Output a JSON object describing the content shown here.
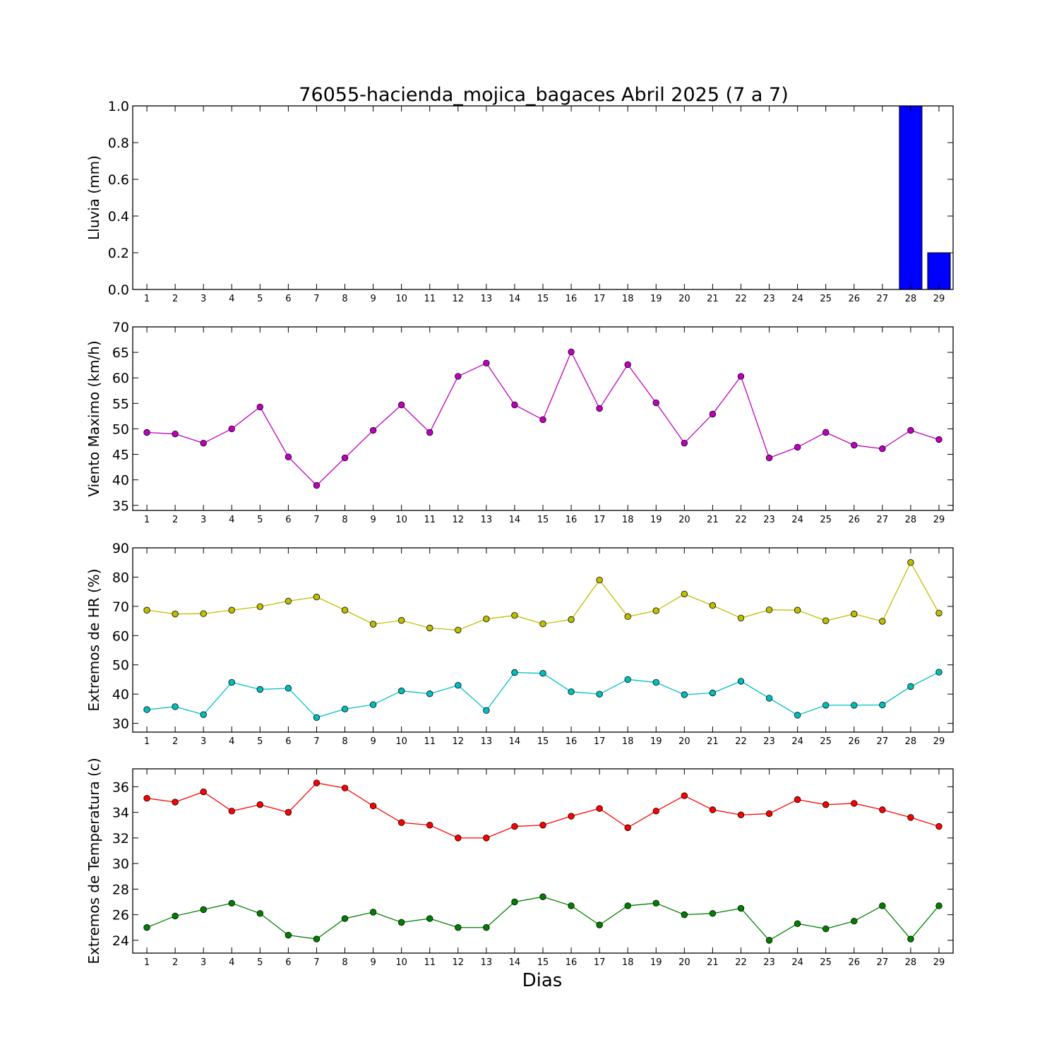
{
  "chart_data": {
    "title": "76055-hacienda_mojica_bagaces Abril 2025  (7 a 7)",
    "xlabel": "Dias",
    "x": [
      1,
      2,
      3,
      4,
      5,
      6,
      7,
      8,
      9,
      10,
      11,
      12,
      13,
      14,
      15,
      16,
      17,
      18,
      19,
      20,
      21,
      22,
      23,
      24,
      25,
      26,
      27,
      28,
      29
    ],
    "panels": [
      {
        "type": "bar",
        "ylabel": "Lluvia (mm)",
        "ylim": [
          0,
          1
        ],
        "yticks": [
          0.0,
          0.2,
          0.4,
          0.6,
          0.8,
          1.0
        ],
        "ytick_decimals": 1,
        "series": [
          {
            "color": "#0000ff",
            "values": [
              0,
              0,
              0,
              0,
              0,
              0,
              0,
              0,
              0,
              0,
              0,
              0,
              0,
              0,
              0,
              0,
              0,
              0,
              0,
              0,
              0,
              0,
              0,
              0,
              0,
              0,
              0,
              1.0,
              0.2
            ]
          }
        ]
      },
      {
        "type": "line",
        "ylabel": "Viento Maximo (km/h)",
        "ylim": [
          34,
          70
        ],
        "yticks": [
          35,
          40,
          45,
          50,
          55,
          60,
          65,
          70
        ],
        "ytick_decimals": 0,
        "series": [
          {
            "color": "#bf00bf",
            "values": [
              49.3,
              49.0,
              47.2,
              50.0,
              54.3,
              44.5,
              38.9,
              44.3,
              49.7,
              54.7,
              49.3,
              60.3,
              62.9,
              54.7,
              51.8,
              65.1,
              54.0,
              62.6,
              55.1,
              47.2,
              52.9,
              60.3,
              44.3,
              46.4,
              49.3,
              46.8,
              46.1,
              49.7,
              47.9
            ]
          }
        ]
      },
      {
        "type": "line",
        "ylabel": "Extremos de HR (%)",
        "ylim": [
          27,
          90
        ],
        "yticks": [
          30,
          40,
          50,
          60,
          70,
          80,
          90
        ],
        "ytick_decimals": 0,
        "series": [
          {
            "color": "#bfbf00",
            "values": [
              68.7,
              67.4,
              67.5,
              68.7,
              69.9,
              71.8,
              73.2,
              68.7,
              63.9,
              65.2,
              62.6,
              61.9,
              65.7,
              66.9,
              64.0,
              65.5,
              79.0,
              66.5,
              68.5,
              74.2,
              70.3,
              66.0,
              68.8,
              68.7,
              65.1,
              67.4,
              64.9,
              85.0,
              67.7
            ]
          },
          {
            "color": "#00bfbf",
            "values": [
              34.7,
              35.7,
              33.0,
              44.0,
              41.6,
              42.0,
              32.0,
              34.9,
              36.4,
              41.1,
              40.1,
              43.0,
              34.4,
              47.4,
              47.1,
              40.8,
              40.0,
              45.0,
              44.0,
              39.8,
              40.4,
              44.4,
              38.6,
              32.8,
              36.2,
              36.2,
              36.3,
              42.6,
              47.5
            ]
          }
        ]
      },
      {
        "type": "line",
        "ylabel": "Extremos de Temperatura (c)",
        "ylim": [
          23,
          37.4
        ],
        "yticks": [
          24,
          26,
          28,
          30,
          32,
          34,
          36
        ],
        "ytick_decimals": 0,
        "series": [
          {
            "color": "#ff0000",
            "values": [
              35.1,
              34.8,
              35.6,
              34.1,
              34.6,
              34.0,
              36.3,
              35.9,
              34.5,
              33.2,
              33.0,
              32.0,
              32.0,
              32.9,
              33.0,
              33.7,
              34.3,
              32.8,
              34.1,
              35.3,
              34.2,
              33.8,
              33.9,
              35.0,
              34.6,
              34.7,
              34.2,
              33.6,
              32.9
            ]
          },
          {
            "color": "#007f00",
            "values": [
              25.0,
              25.9,
              26.4,
              26.9,
              26.1,
              24.4,
              24.1,
              25.7,
              26.2,
              25.4,
              25.7,
              25.0,
              25.0,
              27.0,
              27.4,
              26.7,
              25.2,
              26.7,
              26.9,
              26.0,
              26.1,
              26.5,
              24.0,
              25.3,
              24.9,
              25.5,
              26.7,
              24.1,
              26.7
            ]
          }
        ]
      }
    ]
  }
}
